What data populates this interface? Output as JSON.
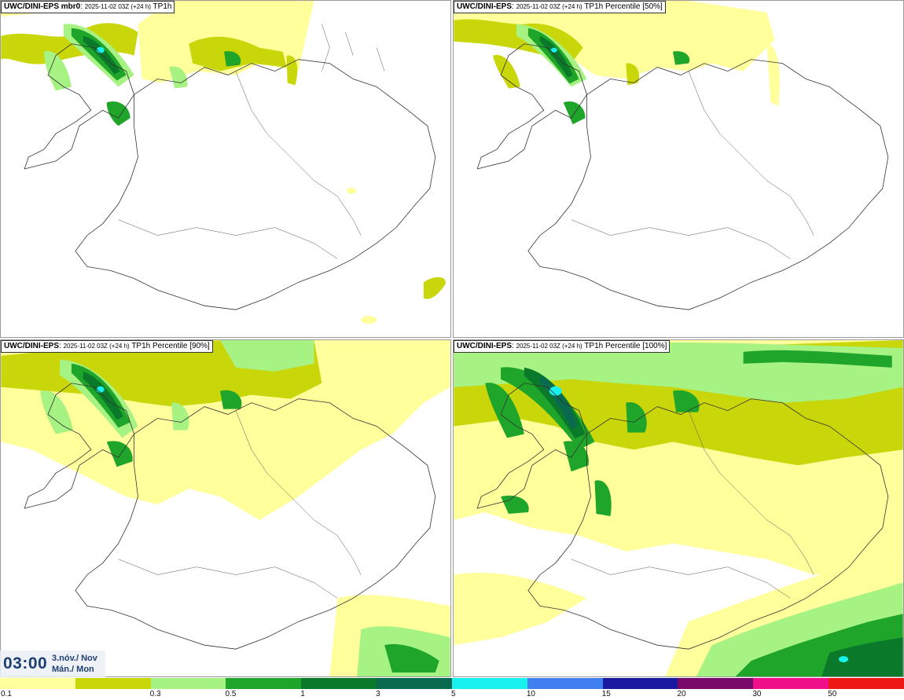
{
  "panels": [
    {
      "model": "UWC/DINI-EPS mbr0",
      "meta": "2025-11-02 03Z (+24 h)",
      "field": "TP1h"
    },
    {
      "model": "UWC/DINI-EPS",
      "meta": "2025-11-02 03Z (+24 h)",
      "field": "TP1h Percentile [50%]"
    },
    {
      "model": "UWC/DINI-EPS",
      "meta": "2025-11-02 03Z (+24 h)",
      "field": "TP1h Percentile [90%]"
    },
    {
      "model": "UWC/DINI-EPS",
      "meta": "2025-11-02 03Z (+24 h)",
      "field": "TP1h Percentile [100%]"
    }
  ],
  "time": {
    "clock": "03:00",
    "date_line": "3.nóv./ Nov",
    "day_line": "Mán./ Mon"
  },
  "legend": {
    "labels": [
      "0.1",
      "0.3",
      "0.5",
      "1",
      "3",
      "5",
      "10",
      "15",
      "20",
      "30",
      "50"
    ],
    "colors": [
      "#ffff9c",
      "#c8d60a",
      "#a6f283",
      "#1fa52a",
      "#0a7a2a",
      "#086b4f",
      "#19f0f0",
      "#3f7fef",
      "#1a1aa0",
      "#7a0a6a",
      "#f0118a",
      "#ef1616"
    ]
  },
  "colors": {
    "land_outline": "#333333",
    "light_yellow": "#ffff9c",
    "olive": "#c8d60a",
    "light_green": "#a6f283",
    "green": "#1fa52a",
    "dark_green": "#086b3a",
    "cyan": "#19f0f0"
  }
}
